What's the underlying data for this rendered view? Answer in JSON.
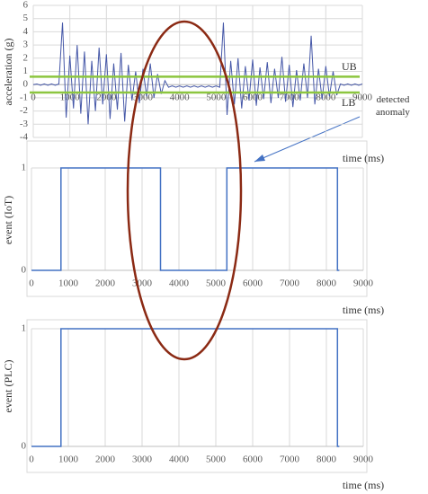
{
  "chart_data": [
    {
      "type": "line",
      "ylabel": "acceleration (g)",
      "xlabel": "time (ms)",
      "xlim": [
        0,
        9000
      ],
      "ylim": [
        -4,
        6
      ],
      "xticks": [
        0,
        1000,
        2000,
        3000,
        4000,
        5000,
        6000,
        7000,
        8000,
        9000
      ],
      "yticks": [
        -4,
        -3,
        -2,
        -1,
        0,
        1,
        2,
        3,
        4,
        5,
        6
      ],
      "grid": true,
      "x": [
        0,
        100,
        200,
        300,
        400,
        500,
        600,
        700,
        800,
        900,
        1000,
        1100,
        1200,
        1300,
        1400,
        1500,
        1600,
        1700,
        1800,
        1900,
        2000,
        2100,
        2200,
        2300,
        2400,
        2500,
        2600,
        2700,
        2800,
        2900,
        3000,
        3100,
        3200,
        3300,
        3400,
        3500,
        3600,
        3700,
        3800,
        3900,
        4000,
        4100,
        4200,
        4300,
        4400,
        4500,
        4600,
        4700,
        4800,
        4900,
        5000,
        5100,
        5200,
        5300,
        5400,
        5500,
        5600,
        5700,
        5800,
        5900,
        6000,
        6100,
        6200,
        6300,
        6400,
        6500,
        6600,
        6700,
        6800,
        6900,
        7000,
        7100,
        7200,
        7300,
        7400,
        7500,
        7600,
        7700,
        7800,
        7900,
        8000,
        8100,
        8200,
        8300,
        8400,
        8500,
        8600,
        8700,
        8800,
        8900,
        9000
      ],
      "series": [
        {
          "color": "#4658a8",
          "values": [
            0,
            0.05,
            -0.05,
            0.05,
            -0.05,
            0.05,
            -0.05,
            0.05,
            4.7,
            -2.5,
            2.2,
            -1.8,
            3.0,
            -2.2,
            2.5,
            -3.0,
            1.8,
            -2.0,
            2.8,
            -1.5,
            2.3,
            -2.6,
            1.6,
            -1.9,
            2.4,
            -2.8,
            1.5,
            -1.2,
            1.0,
            -1.4,
            1.2,
            -0.9,
            1.6,
            -1.0,
            0.8,
            -0.7,
            0.3,
            -0.2,
            -0.1,
            -0.2,
            -0.1,
            -0.2,
            -0.1,
            -0.2,
            -0.1,
            -0.2,
            -0.1,
            -0.2,
            -0.1,
            -0.2,
            -0.1,
            -0.2,
            4.7,
            -2.3,
            1.8,
            -1.5,
            2.0,
            -1.8,
            1.4,
            -1.2,
            1.9,
            -1.6,
            1.3,
            -1.1,
            1.7,
            -1.4,
            1.2,
            -1.0,
            2.1,
            -1.3,
            1.5,
            -1.7,
            1.1,
            -1.2,
            1.6,
            -1.0,
            3.7,
            -1.5,
            1.2,
            -1.1,
            1.4,
            -0.9,
            1.0,
            -0.8,
            0.05,
            -0.05,
            0.05,
            -0.05,
            0.05,
            -0.05,
            0.05
          ]
        }
      ],
      "thresholds": [
        {
          "name": "UB",
          "value": 0.6,
          "color": "#8cc63f"
        },
        {
          "name": "LB",
          "value": -0.6,
          "color": "#8cc63f"
        }
      ]
    },
    {
      "type": "line",
      "ylabel": "event (IoT)",
      "xlabel": "time (ms)",
      "annotation": "detected anomaly",
      "xlim": [
        0,
        9000
      ],
      "ylim": [
        0,
        1
      ],
      "xticks": [
        0,
        1000,
        2000,
        3000,
        4000,
        5000,
        6000,
        7000,
        8000,
        9000
      ],
      "yticks": [
        0,
        1
      ],
      "grid": true,
      "x": [
        0,
        800,
        800,
        3500,
        3500,
        5300,
        5300,
        8300,
        8300,
        8350
      ],
      "series": [
        {
          "color": "#4472c4",
          "values": [
            0,
            0,
            1,
            1,
            0,
            0,
            1,
            1,
            0,
            0
          ]
        }
      ]
    },
    {
      "type": "line",
      "ylabel": "event (PLC)",
      "xlabel": "time (ms)",
      "xlim": [
        0,
        9000
      ],
      "ylim": [
        0,
        1
      ],
      "xticks": [
        0,
        1000,
        2000,
        3000,
        4000,
        5000,
        6000,
        7000,
        8000,
        9000
      ],
      "yticks": [
        0,
        1
      ],
      "grid": true,
      "x": [
        0,
        800,
        800,
        8300,
        8300,
        8350
      ],
      "series": [
        {
          "color": "#4472c4",
          "values": [
            0,
            0,
            1,
            1,
            0,
            0
          ]
        }
      ]
    }
  ]
}
